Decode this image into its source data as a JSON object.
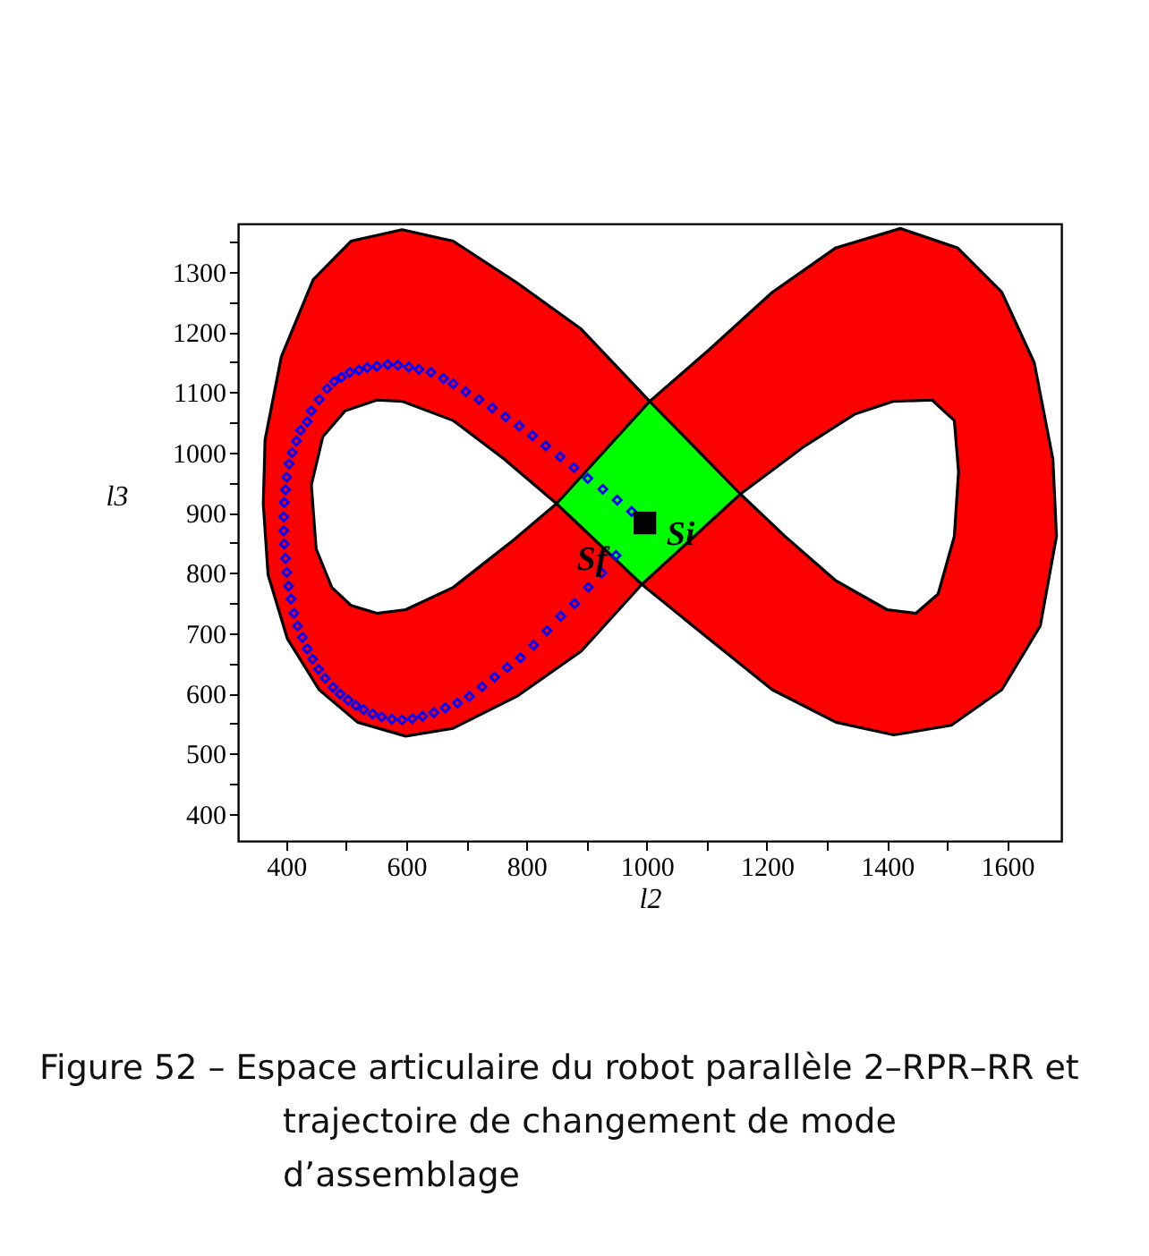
{
  "chart_data": {
    "type": "area",
    "title": "Figure 52 – Espace articulaire du robot parallèle 2–RPR–RR et trajectoire de changement de mode d’assemblage",
    "xlabel": "l2",
    "ylabel": "l3",
    "xlim": [
      320,
      1690
    ],
    "ylim": [
      355,
      1380
    ],
    "xticks": [
      400,
      {
        "value": 500,
        "label": null
      },
      600,
      {
        "value": 700,
        "label": null
      },
      800,
      {
        "value": 900,
        "label": null
      },
      1000,
      {
        "value": 1100,
        "label": null
      },
      1200,
      {
        "value": 1300,
        "label": null
      },
      1400,
      {
        "value": 1500,
        "label": null
      },
      1600
    ],
    "yticks": [
      400,
      {
        "value": 450,
        "label": null
      },
      500,
      {
        "value": 550,
        "label": null
      },
      600,
      {
        "value": 650,
        "label": null
      },
      700,
      {
        "value": 750,
        "label": null
      },
      800,
      {
        "value": 850,
        "label": null
      },
      900,
      {
        "value": 950,
        "label": null
      },
      1000,
      {
        "value": 1050,
        "label": null
      },
      1100,
      {
        "value": 1150,
        "label": null
      },
      1200,
      {
        "value": 1250,
        "label": null
      },
      1300,
      {
        "value": 1350,
        "label": null
      }
    ],
    "grid": false,
    "series": [
      {
        "type": "area",
        "color": "#ff0000",
        "x": [
          1005,
          891,
          784,
          678,
          593,
          508,
          445,
          392,
          365,
          362,
          370,
          402,
          455,
          519,
          599,
          678,
          784,
          891,
          992,
          1103,
          1209,
          1315,
          1411,
          1507,
          1591,
          1655,
          1682,
          1676,
          1645,
          1591,
          1517,
          1422,
          1315,
          1209,
          1103
        ],
        "values": [
          1085,
          1205,
          1282,
          1351,
          1370,
          1351,
          1287,
          1159,
          1021,
          915,
          797,
          691,
          606,
          552,
          529,
          542,
          595,
          670,
          781,
          691,
          606,
          552,
          531,
          547,
          606,
          712,
          861,
          989,
          1149,
          1266,
          1340,
          1372,
          1340,
          1266,
          1170
        ]
      },
      {
        "type": "area",
        "color": "#ffffff",
        "x": [
          850,
          763,
          678,
          593,
          551,
          498,
          461,
          442,
          450,
          476,
          508,
          551,
          599,
          678,
          774
        ],
        "values": [
          915,
          989,
          1053,
          1085,
          1087,
          1069,
          1026,
          946,
          840,
          776,
          746,
          733,
          739,
          776,
          851
        ]
      },
      {
        "type": "area",
        "color": "#ffffff",
        "x": [
          1156,
          1262,
          1347,
          1411,
          1475,
          1512,
          1519,
          1512,
          1485,
          1448,
          1400,
          1315,
          1230
        ],
        "values": [
          931,
          1010,
          1064,
          1085,
          1087,
          1053,
          968,
          861,
          765,
          733,
          739,
          787,
          861
        ]
      },
      {
        "type": "area",
        "color": "#00ff00",
        "x": [
          1005,
          1156,
          992,
          850
        ],
        "values": [
          1085,
          931,
          781,
          915
        ]
      },
      {
        "type": "scatter",
        "marker": "diamond",
        "color": "#0000ff",
        "x": [
          975,
          951,
          927,
          902,
          879,
          856,
          832,
          810,
          788,
          765,
          743,
          721,
          699,
          678,
          662,
          641,
          621,
          604,
          586,
          569,
          551,
          535,
          521,
          506,
          492,
          480,
          468,
          455,
          442,
          435,
          424,
          417,
          410,
          405,
          401,
          399,
          397,
          396,
          396,
          397,
          399,
          401,
          404,
          408,
          413,
          419,
          427,
          435,
          444,
          454,
          465,
          478,
          490,
          503,
          516,
          529,
          544,
          559,
          576,
          593,
          610,
          627,
          646,
          665,
          685,
          705,
          726,
          747,
          768,
          790,
          812,
          834,
          857,
          880,
          903,
          925,
          949
        ],
        "values": [
          902,
          921,
          939,
          957,
          975,
          993,
          1011,
          1028,
          1044,
          1059,
          1074,
          1088,
          1101,
          1114,
          1123,
          1133,
          1138,
          1142,
          1145,
          1146,
          1143,
          1141,
          1137,
          1133,
          1125,
          1118,
          1106,
          1088,
          1069,
          1051,
          1037,
          1019,
          1000,
          981,
          959,
          938,
          917,
          893,
          870,
          848,
          824,
          801,
          778,
          757,
          733,
          712,
          693,
          674,
          657,
          640,
          625,
          610,
          599,
          589,
          580,
          573,
          566,
          561,
          557,
          556,
          558,
          562,
          568,
          576,
          584,
          595,
          611,
          627,
          643,
          659,
          680,
          704,
          728,
          749,
          776,
          800,
          829
        ]
      },
      {
        "type": "scatter",
        "marker": "square",
        "color": "#000000",
        "x": [
          997
        ],
        "values": [
          883
        ]
      }
    ],
    "annotations": [
      {
        "text": "Sf",
        "x": 949,
        "y": 829
      },
      {
        "text": "Si",
        "x": 997,
        "y": 883
      }
    ]
  }
}
